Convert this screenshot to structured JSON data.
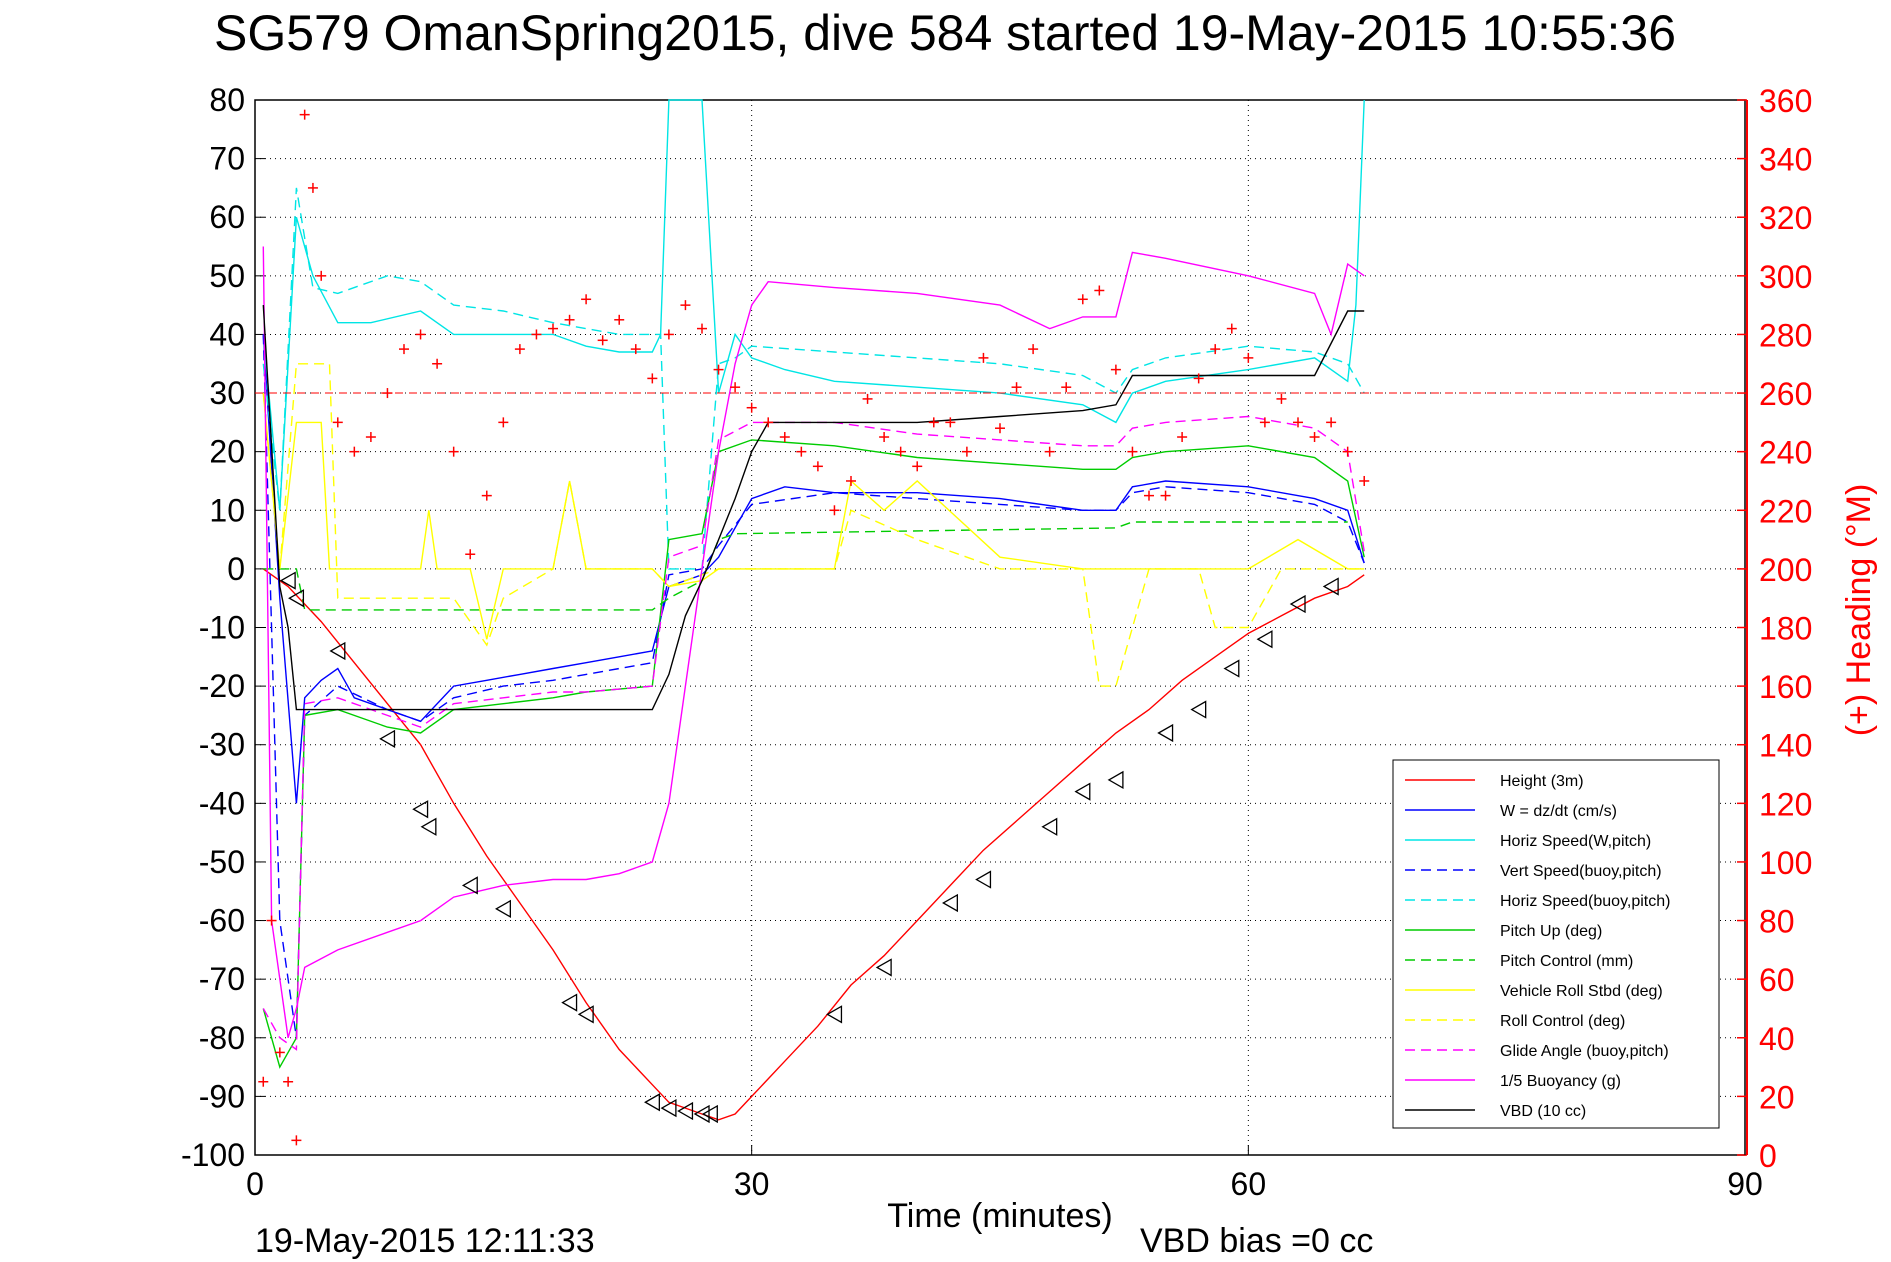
{
  "title": "SG579 OmanSpring2015, dive 584 started 19-May-2015 10:55:36",
  "footer": {
    "timestamp": "19-May-2015 12:11:33",
    "vbd_bias": "VBD bias =0 cc"
  },
  "chart_data": {
    "type": "line",
    "xlabel": "Time (minutes)",
    "ylabel_left": "",
    "ylabel_right": "(+) Heading (°M)",
    "xlim": [
      0,
      90
    ],
    "ylim_left": [
      -100,
      80
    ],
    "ylim_right": [
      0,
      360
    ],
    "x_ticks": [
      "0",
      "30",
      "60",
      "90"
    ],
    "y_ticks_left": [
      "80",
      "70",
      "60",
      "50",
      "40",
      "30",
      "20",
      "10",
      "0",
      "-10",
      "-20",
      "-30",
      "-40",
      "-50",
      "-60",
      "-70",
      "-80",
      "-90",
      "-100"
    ],
    "y_ticks_right": [
      "360",
      "340",
      "320",
      "300",
      "280",
      "260",
      "240",
      "220",
      "200",
      "180",
      "160",
      "140",
      "120",
      "100",
      "80",
      "60",
      "40",
      "20",
      "0"
    ],
    "grid": true,
    "legend_position": "bottom-right",
    "series": [
      {
        "name": "Height (3m)",
        "color": "#ff0000",
        "dash": "solid",
        "x": [
          0.5,
          2,
          4,
          6,
          8,
          10,
          12,
          14,
          16,
          18,
          20,
          22,
          24,
          25,
          26,
          27,
          28,
          29,
          30,
          32,
          34,
          36,
          38,
          40,
          42,
          44,
          46,
          48,
          50,
          52,
          54,
          56,
          58,
          60,
          62,
          64,
          66,
          67
        ],
        "y": [
          0,
          -3,
          -9,
          -16,
          -23,
          -30,
          -40,
          -49,
          -57,
          -65,
          -74,
          -82,
          -88,
          -91,
          -92,
          -93,
          -94,
          -93,
          -90,
          -84,
          -78,
          -71,
          -66,
          -60,
          -54,
          -48,
          -43,
          -38,
          -33,
          -28,
          -24,
          -19,
          -15,
          -11,
          -8,
          -5,
          -3,
          -1
        ]
      },
      {
        "name": "W = dz/dt (cm/s)",
        "color": "#0000ff",
        "dash": "solid",
        "x": [
          0.5,
          1.5,
          2.5,
          3,
          4,
          5,
          6,
          8,
          10,
          12,
          14,
          16,
          18,
          20,
          22,
          24,
          25,
          26,
          27,
          28,
          29,
          30,
          32,
          35,
          40,
          45,
          50,
          52,
          53,
          55,
          60,
          64,
          66,
          67
        ],
        "y": [
          40,
          -5,
          -40,
          -22,
          -19,
          -17,
          -22,
          -24,
          -26,
          -20,
          -19,
          -18,
          -17,
          -16,
          -15,
          -14,
          -3,
          -2,
          -1,
          2,
          7,
          12,
          14,
          13,
          13,
          12,
          10,
          10,
          14,
          15,
          14,
          12,
          10,
          1
        ]
      },
      {
        "name": "Horiz Speed(W,pitch)",
        "color": "#00e5e5",
        "dash": "solid",
        "x": [
          0.5,
          1.5,
          2.5,
          3.5,
          5,
          7,
          10,
          12,
          15,
          18,
          20,
          22,
          24,
          24.5,
          25,
          26,
          27,
          28,
          29,
          30,
          32,
          35,
          40,
          45,
          50,
          52,
          53,
          55,
          60,
          64,
          66,
          66.5,
          67
        ],
        "y": [
          40,
          10,
          60,
          50,
          42,
          42,
          44,
          40,
          40,
          40,
          38,
          37,
          37,
          40,
          80,
          80,
          80,
          30,
          40,
          36,
          34,
          32,
          31,
          30,
          28,
          25,
          30,
          32,
          34,
          36,
          32,
          45,
          80
        ]
      },
      {
        "name": "Vert Speed(buoy,pitch)",
        "color": "#0000ff",
        "dash": "dashed",
        "x": [
          0.5,
          1.5,
          2.5,
          3,
          5,
          8,
          10,
          12,
          15,
          18,
          20,
          24,
          25,
          27,
          28,
          30,
          35,
          40,
          45,
          50,
          52,
          53,
          55,
          60,
          64,
          66,
          67
        ],
        "y": [
          40,
          -60,
          -80,
          -25,
          -20,
          -24,
          -26,
          -22,
          -20,
          -19,
          -18,
          -16,
          -1,
          0,
          4,
          11,
          13,
          12,
          11,
          10,
          10,
          13,
          14,
          13,
          11,
          8,
          1
        ]
      },
      {
        "name": "Horiz Speed(buoy,pitch)",
        "color": "#00e5e5",
        "dash": "dashed",
        "x": [
          0.5,
          1.5,
          2.5,
          3.5,
          5,
          8,
          10,
          12,
          15,
          18,
          20,
          22,
          24,
          24.5,
          25,
          26,
          27,
          28,
          29,
          30,
          35,
          40,
          45,
          50,
          52,
          53,
          55,
          60,
          64,
          66,
          67
        ],
        "y": [
          35,
          10,
          65,
          48,
          47,
          50,
          49,
          45,
          44,
          42,
          41,
          40,
          40,
          40,
          0,
          0,
          0,
          35,
          36,
          38,
          37,
          36,
          35,
          33,
          30,
          34,
          36,
          38,
          37,
          35,
          30
        ]
      },
      {
        "name": "Pitch Up (deg)",
        "color": "#00cc00",
        "dash": "solid",
        "x": [
          0.5,
          1.5,
          2.5,
          3,
          5,
          8,
          10,
          12,
          15,
          18,
          20,
          24,
          25,
          27,
          28,
          30,
          35,
          40,
          45,
          50,
          52,
          53,
          55,
          60,
          64,
          66,
          67
        ],
        "y": [
          -75,
          -85,
          -80,
          -25,
          -24,
          -27,
          -28,
          -24,
          -23,
          -22,
          -21,
          -20,
          5,
          6,
          20,
          22,
          21,
          19,
          18,
          17,
          17,
          19,
          20,
          21,
          19,
          15,
          2
        ]
      },
      {
        "name": "Pitch Control (mm)",
        "color": "#00cc00",
        "dash": "dashed",
        "x": [
          0.5,
          1.5,
          2.5,
          3,
          24,
          25,
          27,
          28,
          29,
          52,
          53,
          66
        ],
        "y": [
          0,
          0,
          0,
          -7,
          -7,
          -5,
          -2,
          5,
          6,
          7,
          8,
          8
        ]
      },
      {
        "name": "Vehicle Roll Stbd (deg)",
        "color": "#ffff00",
        "dash": "solid",
        "x": [
          0.5,
          1.5,
          2.5,
          3,
          4,
          4.5,
          5,
          8,
          10,
          10.5,
          11,
          13,
          14,
          15,
          16,
          18,
          19,
          20,
          24,
          25,
          27,
          28,
          30,
          35,
          36,
          38,
          40,
          45,
          50,
          55,
          58,
          60,
          63,
          66,
          67
        ],
        "y": [
          30,
          0,
          25,
          25,
          25,
          0,
          0,
          0,
          0,
          10,
          0,
          0,
          -12,
          0,
          0,
          0,
          15,
          0,
          0,
          -3,
          -2,
          0,
          0,
          0,
          15,
          10,
          15,
          2,
          0,
          0,
          0,
          0,
          5,
          0,
          0
        ]
      },
      {
        "name": "Roll Control (deg)",
        "color": "#ffff00",
        "dash": "dashed",
        "x": [
          0.5,
          1.5,
          2.5,
          3,
          4.5,
          5,
          8,
          12,
          14,
          15,
          18,
          19,
          20,
          24,
          25,
          28,
          35,
          36,
          40,
          45,
          50,
          51,
          52,
          54,
          57,
          58,
          60,
          62,
          66,
          67
        ],
        "y": [
          30,
          0,
          35,
          35,
          35,
          -5,
          -5,
          -5,
          -13,
          -5,
          0,
          15,
          0,
          0,
          -3,
          0,
          0,
          10,
          5,
          0,
          0,
          -20,
          -20,
          0,
          0,
          -10,
          -10,
          0,
          0,
          0
        ]
      },
      {
        "name": "Glide Angle (buoy,pitch)",
        "color": "#ff00ff",
        "dash": "dashed",
        "x": [
          0.5,
          1.5,
          2.5,
          3,
          5,
          8,
          10,
          12,
          15,
          18,
          20,
          24,
          25,
          27,
          28,
          30,
          35,
          40,
          45,
          50,
          52,
          53,
          55,
          60,
          64,
          66,
          67
        ],
        "y": [
          -75,
          -80,
          -82,
          -23,
          -22,
          -25,
          -27,
          -23,
          -22,
          -21,
          -21,
          -20,
          2,
          4,
          22,
          25,
          25,
          23,
          22,
          21,
          21,
          24,
          25,
          26,
          24,
          20,
          3
        ]
      },
      {
        "name": "1/5 Buoyancy (g)",
        "color": "#ff00ff",
        "dash": "solid",
        "x": [
          0.5,
          1,
          2,
          2.5,
          3,
          5,
          8,
          10,
          12,
          15,
          18,
          20,
          22,
          24,
          25,
          26,
          27,
          28,
          29,
          30,
          31,
          35,
          40,
          45,
          48,
          50,
          52,
          53,
          55,
          60,
          64,
          65,
          66,
          67
        ],
        "y": [
          55,
          -60,
          -80,
          -75,
          -68,
          -65,
          -62,
          -60,
          -56,
          -54,
          -53,
          -53,
          -52,
          -50,
          -40,
          -20,
          0,
          20,
          35,
          45,
          49,
          48,
          47,
          45,
          41,
          43,
          43,
          54,
          53,
          50,
          47,
          40,
          52,
          50
        ]
      },
      {
        "name": "VBD (10 cc)",
        "color": "#000000",
        "dash": "solid",
        "x": [
          0.5,
          1.5,
          2,
          2.5,
          10,
          24,
          25,
          26,
          27,
          28,
          29,
          30,
          31,
          40,
          45,
          50,
          52,
          53,
          55,
          60,
          64,
          66,
          67
        ],
        "y": [
          45,
          -3,
          -10,
          -24,
          -24,
          -24,
          -18,
          -8,
          -2,
          5,
          12,
          20,
          25,
          25,
          26,
          27,
          28,
          33,
          33,
          33,
          33,
          44,
          44
        ]
      }
    ],
    "heading_series": {
      "name": "Heading",
      "color": "#ff0000",
      "marker": "+",
      "axis": "right",
      "x": [
        0.5,
        1,
        1.5,
        2,
        2.5,
        3,
        3.5,
        4,
        5,
        6,
        7,
        8,
        9,
        10,
        11,
        12,
        13,
        14,
        15,
        16,
        17,
        18,
        19,
        20,
        21,
        22,
        23,
        24,
        25,
        26,
        27,
        28,
        29,
        30,
        31,
        32,
        33,
        34,
        35,
        36,
        37,
        38,
        39,
        40,
        41,
        42,
        43,
        44,
        45,
        46,
        47,
        48,
        49,
        50,
        51,
        52,
        53,
        54,
        55,
        56,
        57,
        58,
        59,
        60,
        61,
        62,
        63,
        64,
        65,
        66,
        67
      ],
      "y": [
        25,
        80,
        35,
        25,
        5,
        355,
        330,
        300,
        250,
        240,
        245,
        260,
        275,
        280,
        270,
        240,
        205,
        225,
        250,
        275,
        280,
        282,
        285,
        292,
        278,
        285,
        275,
        265,
        280,
        290,
        282,
        268,
        262,
        255,
        250,
        245,
        240,
        235,
        220,
        230,
        258,
        245,
        240,
        235,
        250,
        250,
        240,
        272,
        248,
        262,
        275,
        240,
        262,
        292,
        295,
        268,
        240,
        225,
        225,
        245,
        265,
        275,
        282,
        272,
        250,
        258,
        250,
        245,
        250,
        240,
        230
      ]
    },
    "markers": {
      "name": "triangles",
      "x": [
        2,
        2.5,
        5,
        8,
        10,
        10.5,
        13,
        15,
        19,
        20,
        24,
        25,
        26,
        27,
        27.5,
        35,
        38,
        42,
        44,
        48,
        50,
        52,
        55,
        57,
        59,
        61,
        63,
        65
      ],
      "y": [
        -2,
        -5,
        -14,
        -29,
        -41,
        -44,
        -54,
        -58,
        -74,
        -76,
        -91,
        -92,
        -92.5,
        -93,
        -93,
        -76,
        -68,
        -57,
        -53,
        -44,
        -38,
        -36,
        -28,
        -24,
        -17,
        -12,
        -6,
        -3
      ]
    }
  }
}
